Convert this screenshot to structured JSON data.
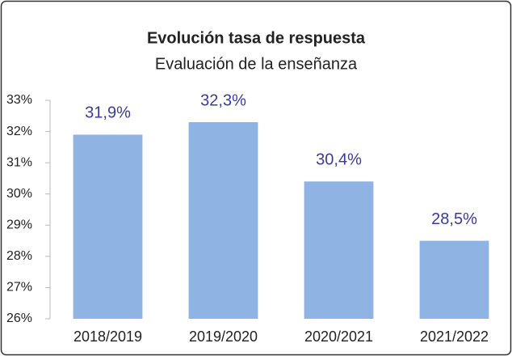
{
  "chart_data": {
    "type": "bar",
    "title": "Evolución tasa de respuesta",
    "subtitle": "Evaluación de la enseñanza",
    "categories": [
      "2018/2019",
      "2019/2020",
      "2020/2021",
      "2021/2022"
    ],
    "values": [
      31.9,
      32.3,
      30.4,
      28.5
    ],
    "value_labels": [
      "31,9%",
      "32,3%",
      "30,4%",
      "28,5%"
    ],
    "color": "#8fb4e3",
    "label_color": "#3a3aa0",
    "ylim": [
      26,
      33
    ],
    "yticks": [
      {
        "value": 26,
        "label": "26%"
      },
      {
        "value": 27,
        "label": "27%"
      },
      {
        "value": 28,
        "label": "28%"
      },
      {
        "value": 29,
        "label": "29%"
      },
      {
        "value": 30,
        "label": "30%"
      },
      {
        "value": 31,
        "label": "31%"
      },
      {
        "value": 32,
        "label": "32%"
      },
      {
        "value": 33,
        "label": "33%"
      }
    ],
    "grid": false
  }
}
